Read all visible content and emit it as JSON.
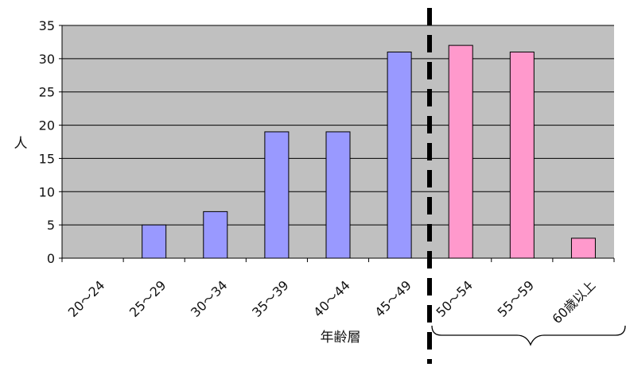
{
  "chart_data": {
    "type": "bar",
    "title": "",
    "xlabel": "年齢層",
    "ylabel": "人",
    "ylim": [
      0,
      35
    ],
    "yticks": [
      0,
      5,
      10,
      15,
      20,
      25,
      30,
      35
    ],
    "grid": true,
    "categories": [
      "20～24",
      "25～29",
      "30～34",
      "35～39",
      "40～44",
      "45～49",
      "50～54",
      "55～59",
      "60歳以上"
    ],
    "values": [
      0,
      5,
      7,
      19,
      19,
      31,
      32,
      31,
      3
    ],
    "colors": {
      "under_50": "#9999ff",
      "50_and_over": "#ff99cc",
      "plot_background": "#c0c0c0",
      "gridline": "#000000",
      "divider": "#000000"
    },
    "annotations": {
      "divider": "dashed vertical line between 45～49 and 50～54",
      "brace": "curly brace under 50～54 through 60歳以上"
    }
  }
}
